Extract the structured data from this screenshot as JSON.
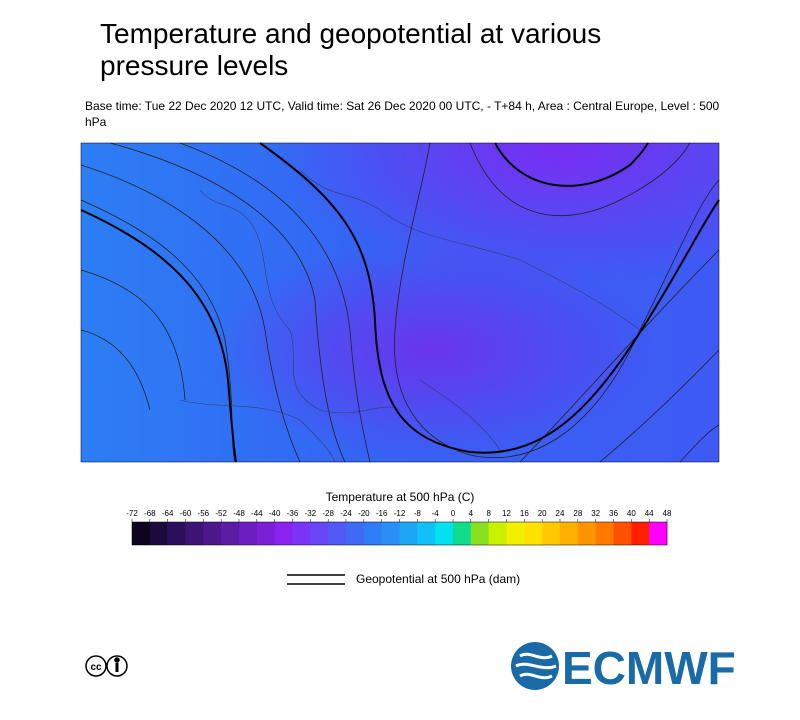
{
  "title": "Temperature and geopotential at various pressure levels",
  "subtitle": "Base time: Tue 22 Dec 2020 12 UTC, Valid time: Sat 26 Dec 2020 00 UTC, - T+84 h, Area : Central Europe, Level : 500 hPa",
  "colorbar": {
    "title": "Temperature at 500 hPa (C)",
    "ticks": [
      -72,
      -68,
      -64,
      -60,
      -56,
      -52,
      -48,
      -44,
      -40,
      -36,
      -32,
      -28,
      -24,
      -20,
      -16,
      -12,
      -8,
      -4,
      0,
      4,
      8,
      12,
      16,
      20,
      24,
      28,
      32,
      36,
      40,
      44,
      48
    ],
    "colors": [
      "#0e0420",
      "#1c0a3c",
      "#2c0f5a",
      "#3c1474",
      "#4c188c",
      "#5c1ca4",
      "#6c1ebe",
      "#7c20d8",
      "#8a22f0",
      "#7a34f6",
      "#6646f6",
      "#5258f6",
      "#3e6af6",
      "#2e7cf6",
      "#2a8ef6",
      "#1ea6f6",
      "#10c0f6",
      "#00e2f0",
      "#10dc90",
      "#88e020",
      "#c8f000",
      "#f0f000",
      "#ffe000",
      "#ffc800",
      "#ffb000",
      "#ff9400",
      "#ff7800",
      "#ff5000",
      "#ff2000",
      "#ff00ff"
    ]
  },
  "legend": {
    "label": "Geopotential at 500 hPa (dam)"
  },
  "logo": {
    "text": "ECMWF"
  }
}
